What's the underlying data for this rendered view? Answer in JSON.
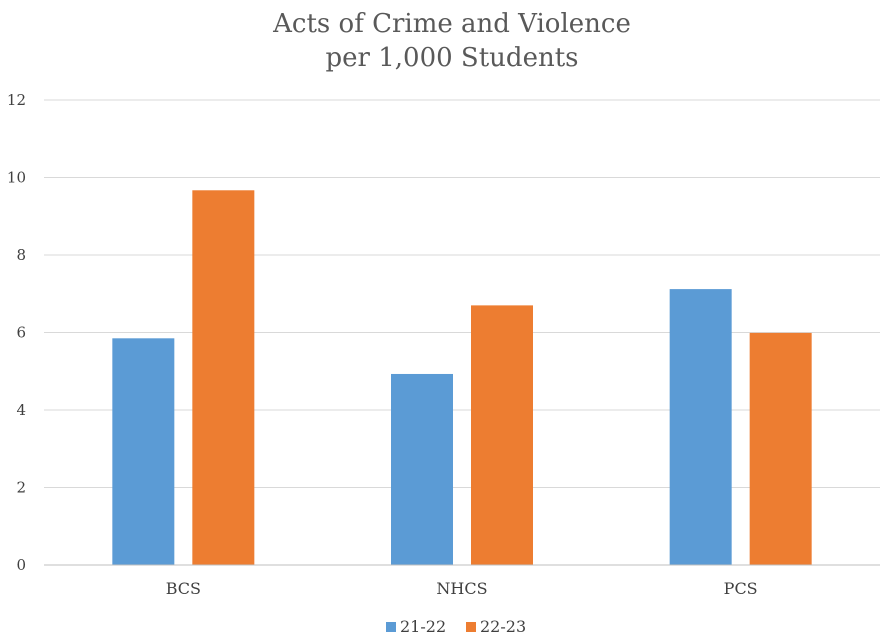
{
  "chart_data": {
    "type": "bar",
    "title_lines": [
      "Acts of Crime and Violence",
      "per 1,000 Students"
    ],
    "categories": [
      "BCS",
      "NHCS",
      "PCS"
    ],
    "series": [
      {
        "name": "21-22",
        "values": [
          5.85,
          4.93,
          7.12
        ],
        "color": "#5B9BD5"
      },
      {
        "name": "22-23",
        "values": [
          9.67,
          6.7,
          5.99
        ],
        "color": "#ED7D31"
      }
    ],
    "ylim": [
      0,
      12
    ],
    "yticks": [
      0,
      2,
      4,
      6,
      8,
      10,
      12
    ],
    "grid": true,
    "legend_position": "bottom-center"
  }
}
